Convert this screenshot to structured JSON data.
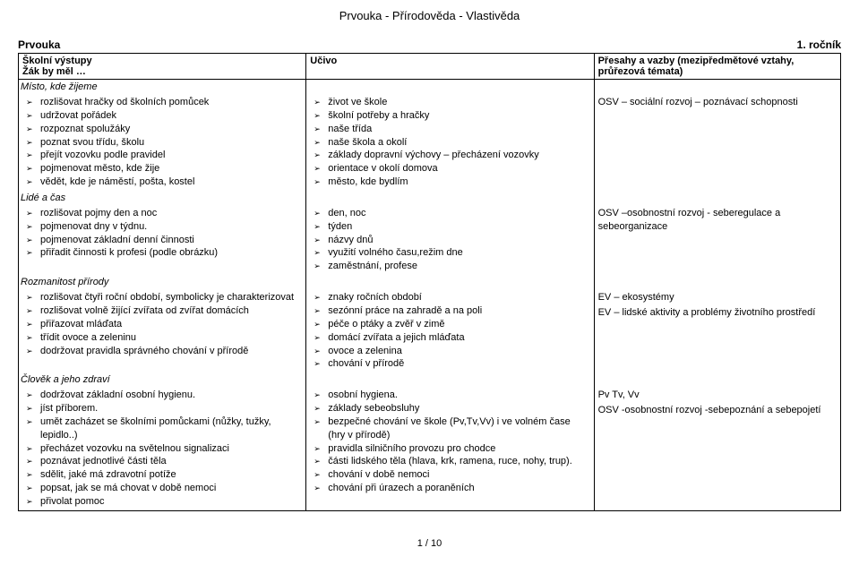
{
  "doc_title": "Prvouka - Přírodověda - Vlastivěda",
  "subject_left": "Prvouka",
  "year_right": "1. ročník",
  "headers": {
    "col1a": "Školní výstupy",
    "col1b": "Žák by měl …",
    "col2": "Učivo",
    "col3a": "Přesahy a vazby (mezipředmětové vztahy,",
    "col3b": "průřezová témata)"
  },
  "sections": [
    {
      "title": "Místo, kde žijeme",
      "outcomes": [
        "rozlišovat hračky od školních pomůcek",
        "udržovat pořádek",
        "rozpoznat spolužáky",
        "poznat svou třídu, školu",
        "přejít vozovku podle pravidel",
        "pojmenovat město, kde žije",
        "vědět, kde je náměstí, pošta, kostel"
      ],
      "content": [
        "život ve škole",
        "školní potřeby a hračky",
        "naše třída",
        "naše škola a okolí",
        "základy dopravní výchovy – přecházení vozovky",
        "orientace v okolí domova",
        "město, kde bydlím"
      ],
      "links": [
        "OSV – sociální rozvoj – poznávací schopnosti"
      ]
    },
    {
      "title": "Lidé a čas",
      "outcomes": [
        "rozlišovat pojmy den a noc",
        "pojmenovat dny v týdnu.",
        "pojmenovat základní denní činnosti",
        "přiřadit činnosti k profesi (podle obrázku)"
      ],
      "content": [
        "den, noc",
        "týden",
        "názvy dnů",
        "využití volného času,režim dne",
        "zaměstnání, profese"
      ],
      "links": [
        "OSV –osobnostní rozvoj  - seberegulace a sebeorganizace"
      ]
    },
    {
      "title": "Rozmanitost přírody",
      "outcomes": [
        "rozlišovat čtyři roční období, symbolicky je charakterizovat",
        "rozlišovat volně žijící zvířata od zvířat domácích",
        "přiřazovat mláďata",
        "třídit ovoce a zeleninu",
        "dodržovat pravidla  správného chování v přírodě"
      ],
      "content": [
        "znaky ročních období",
        "sezónní práce na zahradě a na poli",
        "péče o ptáky a zvěř v zimě",
        "domácí zvířata a jejich mláďata",
        "ovoce a zelenina",
        "chování v přírodě"
      ],
      "links": [
        "EV – ekosystémy",
        "EV – lidské aktivity a problémy životního prostředí"
      ]
    },
    {
      "title": "Člověk a jeho zdraví",
      "outcomes": [
        "dodržovat základní osobní hygienu.",
        "jíst příborem.",
        "umět zacházet se školními pomůckami (nůžky, tužky, lepidlo..)",
        "přecházet vozovku na světelnou signalizaci",
        "poznávat jednotlivé části těla",
        "sdělit, jaké má zdravotní potíže",
        "popsat, jak se má chovat v době nemoci",
        "přivolat pomoc"
      ],
      "content": [
        "osobní hygiena.",
        "základy sebeobsluhy",
        "bezpečné chování ve  škole (Pv,Tv,Vv) i ve volném čase (hry v přírodě)",
        "pravidla silničního provozu pro chodce",
        "části lidského těla (hlava, krk, ramena, ruce, nohy, trup).",
        "chování v době nemoci",
        "chování při úrazech a poraněních"
      ],
      "links": [
        "Pv Tv, Vv",
        "OSV -osobnostní rozvoj -sebepoznání a sebepojetí"
      ]
    }
  ],
  "page_footer": "1 / 10"
}
